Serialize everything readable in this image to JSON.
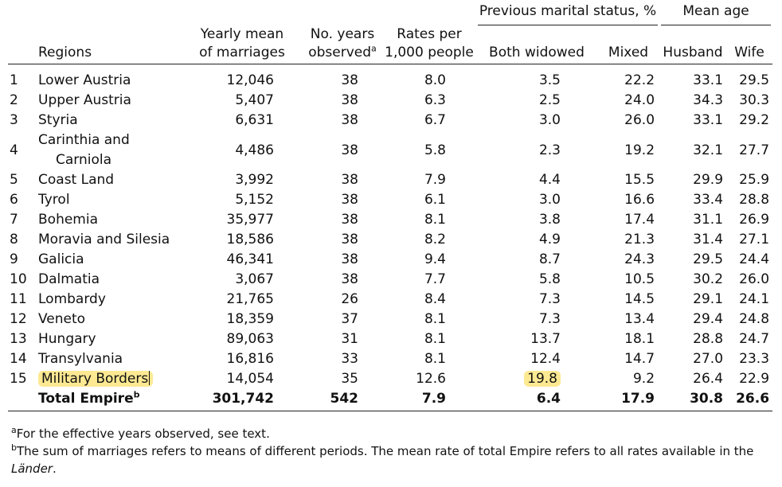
{
  "header": {
    "group_marital": "Previous marital status, %",
    "group_age": "Mean age",
    "regions": "Regions",
    "yearly_mean_l1": "Yearly mean",
    "yearly_mean_l2": "of marriages",
    "years_l1": "No. years",
    "years_l2": "observed",
    "years_sup": "a",
    "rates_l1": "Rates per",
    "rates_l2": "1,000 people",
    "both_widowed": "Both widowed",
    "mixed": "Mixed",
    "husband": "Husband",
    "wife": "Wife"
  },
  "rows": [
    {
      "num": "1",
      "region": "Lower Austria",
      "region2": "",
      "mean": "12,046",
      "years": "38",
      "rate": "8.0",
      "both": "3.5",
      "mixed": "22.2",
      "husband": "33.1",
      "wife": "29.5"
    },
    {
      "num": "2",
      "region": "Upper Austria",
      "region2": "",
      "mean": "5,407",
      "years": "38",
      "rate": "6.3",
      "both": "2.5",
      "mixed": "24.0",
      "husband": "34.3",
      "wife": "30.3"
    },
    {
      "num": "3",
      "region": "Styria",
      "region2": "",
      "mean": "6,631",
      "years": "38",
      "rate": "6.7",
      "both": "3.0",
      "mixed": "26.0",
      "husband": "33.1",
      "wife": "29.2"
    },
    {
      "num": "4",
      "region": "Carinthia and",
      "region2": "Carniola",
      "mean": "4,486",
      "years": "38",
      "rate": "5.8",
      "both": "2.3",
      "mixed": "19.2",
      "husband": "32.1",
      "wife": "27.7"
    },
    {
      "num": "5",
      "region": "Coast Land",
      "region2": "",
      "mean": "3,992",
      "years": "38",
      "rate": "7.9",
      "both": "4.4",
      "mixed": "15.5",
      "husband": "29.9",
      "wife": "25.9"
    },
    {
      "num": "6",
      "region": "Tyrol",
      "region2": "",
      "mean": "5,152",
      "years": "38",
      "rate": "6.1",
      "both": "3.0",
      "mixed": "16.6",
      "husband": "33.4",
      "wife": "28.8"
    },
    {
      "num": "7",
      "region": "Bohemia",
      "region2": "",
      "mean": "35,977",
      "years": "38",
      "rate": "8.1",
      "both": "3.8",
      "mixed": "17.4",
      "husband": "31.1",
      "wife": "26.9"
    },
    {
      "num": "8",
      "region": "Moravia and Silesia",
      "region2": "",
      "mean": "18,586",
      "years": "38",
      "rate": "8.2",
      "both": "4.9",
      "mixed": "21.3",
      "husband": "31.4",
      "wife": "27.1"
    },
    {
      "num": "9",
      "region": "Galicia",
      "region2": "",
      "mean": "46,341",
      "years": "38",
      "rate": "9.4",
      "both": "8.7",
      "mixed": "24.3",
      "husband": "29.5",
      "wife": "24.4"
    },
    {
      "num": "10",
      "region": "Dalmatia",
      "region2": "",
      "mean": "3,067",
      "years": "38",
      "rate": "7.7",
      "both": "5.8",
      "mixed": "10.5",
      "husband": "30.2",
      "wife": "26.0"
    },
    {
      "num": "11",
      "region": "Lombardy",
      "region2": "",
      "mean": "21,765",
      "years": "26",
      "rate": "8.4",
      "both": "7.3",
      "mixed": "14.5",
      "husband": "29.1",
      "wife": "24.1"
    },
    {
      "num": "12",
      "region": "Veneto",
      "region2": "",
      "mean": "18,359",
      "years": "37",
      "rate": "8.1",
      "both": "7.3",
      "mixed": "13.4",
      "husband": "29.4",
      "wife": "24.8"
    },
    {
      "num": "13",
      "region": "Hungary",
      "region2": "",
      "mean": "89,063",
      "years": "31",
      "rate": "8.1",
      "both": "13.7",
      "mixed": "18.1",
      "husband": "28.8",
      "wife": "24.7"
    },
    {
      "num": "14",
      "region": "Transylvania",
      "region2": "",
      "mean": "16,816",
      "years": "33",
      "rate": "8.1",
      "both": "12.4",
      "mixed": "14.7",
      "husband": "27.0",
      "wife": "23.3"
    },
    {
      "num": "15",
      "region": "Military Borders",
      "region2": "",
      "mean": "14,054",
      "years": "35",
      "rate": "12.6",
      "both": "19.8",
      "mixed": "9.2",
      "husband": "26.4",
      "wife": "22.9"
    }
  ],
  "total": {
    "label": "Total Empire",
    "sup": "b",
    "mean": "301,742",
    "years": "542",
    "rate": "7.9",
    "both": "6.4",
    "mixed": "17.9",
    "husband": "30.8",
    "wife": "26.6"
  },
  "notes": {
    "a_sup": "a",
    "a_text": "For the effective years observed, see text.",
    "b_sup": "b",
    "b_text": "The sum of marriages refers to means of different periods. The mean rate of total Empire refers to all rates available in the",
    "b_text_italic": "Länder",
    "b_text_end": "."
  },
  "colors": {
    "highlight": "#fde992"
  }
}
